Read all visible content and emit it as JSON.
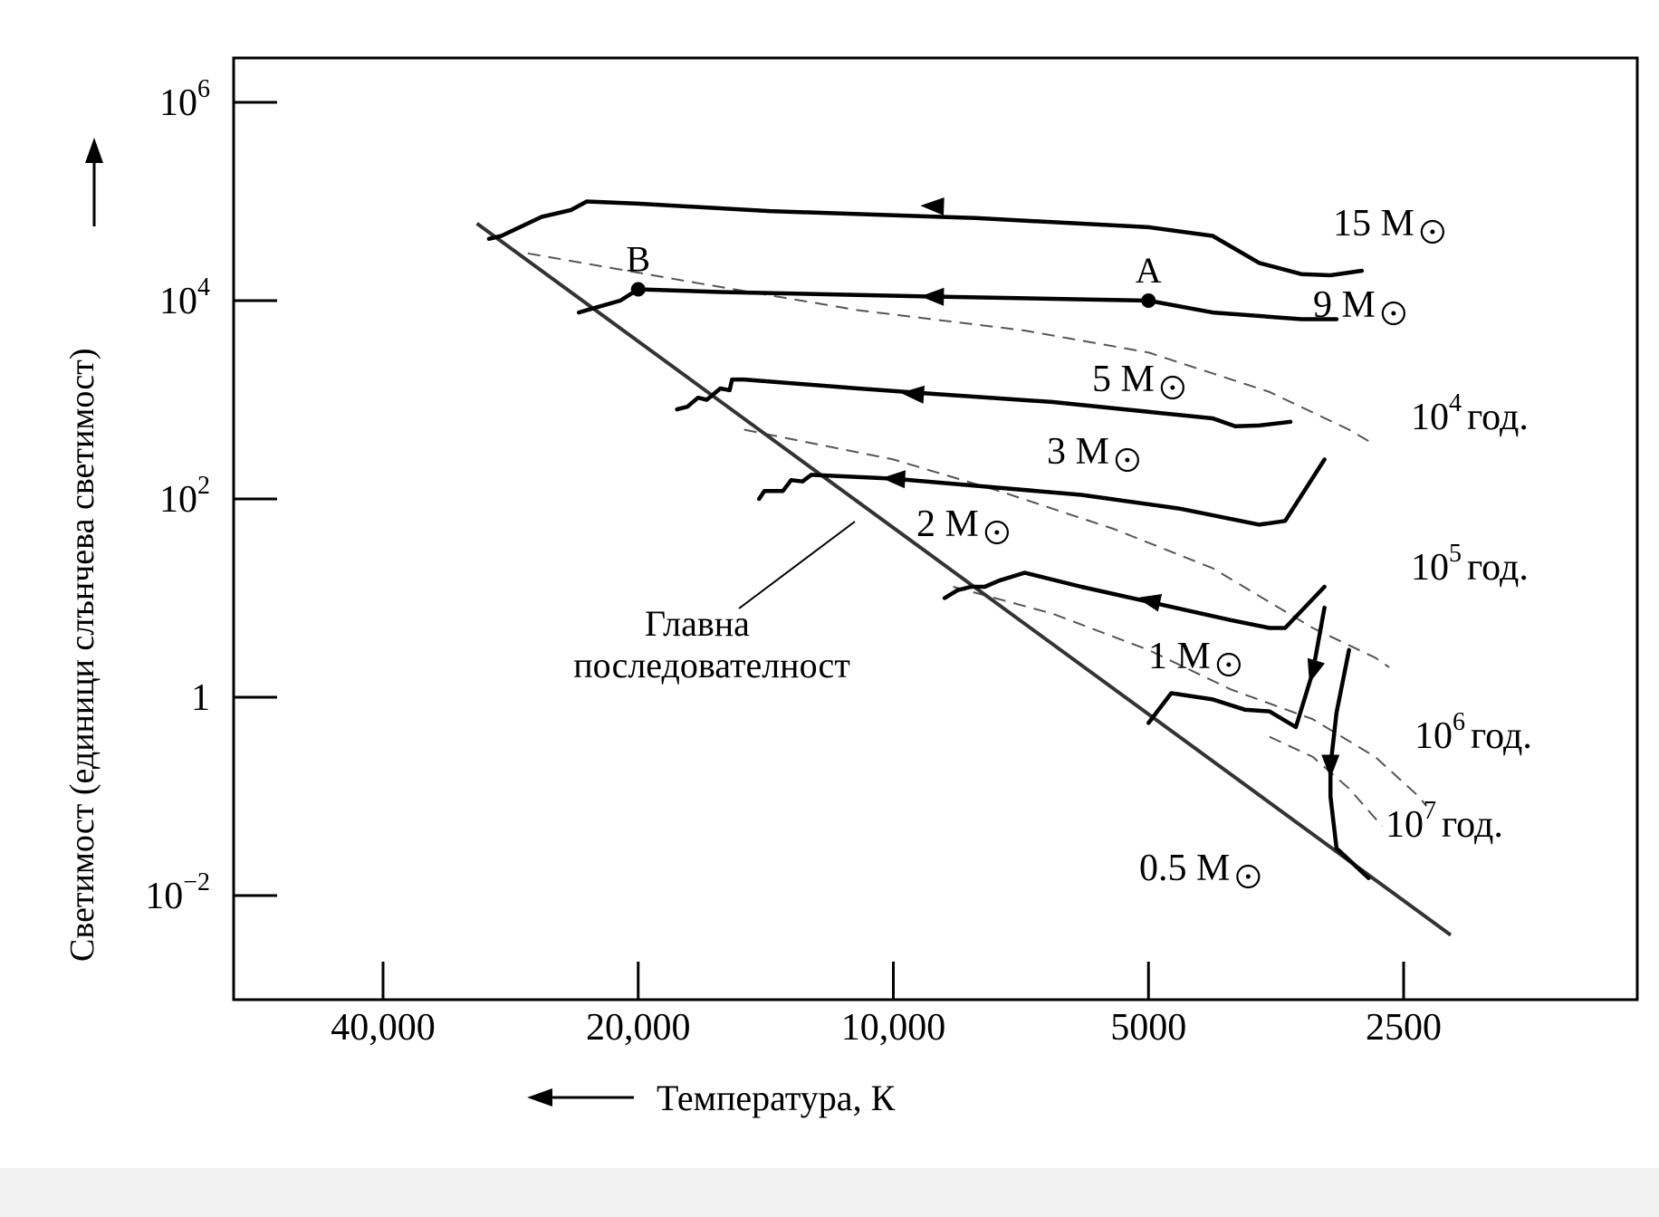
{
  "chart_data": {
    "type": "line",
    "xlabel": "Температура, К",
    "ylabel": "Светимост (единици слънчева светимост)",
    "x_scale": "log, reversed",
    "y_scale": "log",
    "xlim": [
      60000,
      1600
    ],
    "ylim": [
      0.001,
      3000000
    ],
    "x_ticks": [
      {
        "value": 40000,
        "label": "40,000"
      },
      {
        "value": 20000,
        "label": "20,000"
      },
      {
        "value": 10000,
        "label": "10,000"
      },
      {
        "value": 5000,
        "label": "5000"
      },
      {
        "value": 2500,
        "label": "2500"
      }
    ],
    "y_ticks": [
      {
        "value": 1000000,
        "base": "10",
        "exp": "6"
      },
      {
        "value": 10000,
        "base": "10",
        "exp": "4"
      },
      {
        "value": 100,
        "base": "10",
        "exp": "2"
      },
      {
        "value": 1,
        "base": "1",
        "exp": ""
      },
      {
        "value": 0.01,
        "base": "10",
        "exp": "−2"
      }
    ],
    "grid": false,
    "main_sequence": {
      "label_line1": "Главна",
      "label_line2": "последователност",
      "points": [
        [
          31000,
          60000
        ],
        [
          2200,
          0.004
        ]
      ]
    },
    "tracks": [
      {
        "mass": "15 M",
        "points": [
          [
            2800,
            20000
          ],
          [
            3050,
            18000
          ],
          [
            3300,
            18500
          ],
          [
            3700,
            24000
          ],
          [
            4200,
            45000
          ],
          [
            5000,
            55000
          ],
          [
            8000,
            68000
          ],
          [
            14000,
            80000
          ],
          [
            20000,
            95000
          ],
          [
            23000,
            100000
          ],
          [
            24000,
            82000
          ],
          [
            26000,
            70000
          ],
          [
            29000,
            45000
          ],
          [
            30000,
            42000
          ]
        ],
        "arrows": [
          [
            9000,
            90000
          ]
        ]
      },
      {
        "mass": "9 M",
        "points": [
          [
            3000,
            6500
          ],
          [
            3300,
            6500
          ],
          [
            4200,
            7600
          ],
          [
            5000,
            10000
          ],
          [
            9000,
            11000
          ],
          [
            16000,
            12200
          ],
          [
            20000,
            13000
          ],
          [
            21000,
            10000
          ],
          [
            23000,
            8000
          ],
          [
            23500,
            7600
          ]
        ],
        "arrows": [
          [
            9000,
            11000
          ]
        ],
        "markers": [
          {
            "label": "A",
            "point": [
              5000,
              10000
            ]
          },
          {
            "label": "B",
            "point": [
              20000,
              13000
            ]
          }
        ]
      },
      {
        "mass": "5 M",
        "points": [
          [
            3400,
            600
          ],
          [
            3700,
            550
          ],
          [
            3950,
            540
          ],
          [
            4200,
            650
          ],
          [
            6500,
            950
          ],
          [
            9000,
            1150
          ],
          [
            11000,
            1300
          ],
          [
            15000,
            1600
          ],
          [
            15500,
            1600
          ],
          [
            15600,
            1250
          ],
          [
            16000,
            1300
          ],
          [
            16600,
            1000
          ],
          [
            17000,
            1050
          ],
          [
            17500,
            850
          ],
          [
            18000,
            800
          ]
        ],
        "arrows": [
          [
            9500,
            1150
          ]
        ]
      },
      {
        "mass": "3 M",
        "points": [
          [
            3100,
            250
          ],
          [
            3450,
            60
          ],
          [
            3700,
            55
          ],
          [
            4600,
            80
          ],
          [
            6000,
            110
          ],
          [
            10000,
            160
          ],
          [
            12500,
            175
          ],
          [
            12800,
            150
          ],
          [
            13200,
            155
          ],
          [
            13500,
            120
          ],
          [
            14200,
            120
          ],
          [
            14400,
            100
          ]
        ],
        "arrows": [
          [
            10000,
            160
          ]
        ]
      },
      {
        "mass": "2 M",
        "points": [
          [
            3100,
            13
          ],
          [
            3450,
            5
          ],
          [
            3600,
            5
          ],
          [
            4000,
            6
          ],
          [
            6000,
            13
          ],
          [
            7000,
            18
          ],
          [
            7500,
            15
          ],
          [
            7800,
            13
          ],
          [
            8100,
            13
          ],
          [
            8400,
            12
          ],
          [
            8700,
            10
          ]
        ],
        "arrows": [
          [
            5000,
            9.5
          ]
        ]
      },
      {
        "mass": "1 M",
        "points": [
          [
            3100,
            8
          ],
          [
            3200,
            1.8
          ],
          [
            3350,
            0.5
          ],
          [
            3600,
            0.72
          ],
          [
            3850,
            0.75
          ],
          [
            4200,
            0.95
          ],
          [
            4700,
            1.1
          ],
          [
            5000,
            0.55
          ]
        ],
        "arrows": [
          [
            3200,
            1.8
          ]
        ]
      },
      {
        "mass": "0.5 M",
        "points": [
          [
            2900,
            3
          ],
          [
            3000,
            0.7
          ],
          [
            3050,
            0.2
          ],
          [
            3050,
            0.1
          ],
          [
            3000,
            0.03
          ],
          [
            2750,
            0.015
          ]
        ],
        "arrows": [
          [
            3050,
            0.2
          ]
        ]
      }
    ],
    "isochrones": [
      {
        "label": "10",
        "exp": "4",
        "unit": "год.",
        "points": [
          [
            27000,
            30000
          ],
          [
            17000,
            15000
          ],
          [
            11000,
            8000
          ],
          [
            7000,
            5000
          ],
          [
            5000,
            3000
          ],
          [
            3600,
            1200
          ],
          [
            2900,
            500
          ],
          [
            2700,
            350
          ]
        ]
      },
      {
        "label": "10",
        "exp": "5",
        "unit": "год.",
        "points": [
          [
            15000,
            500
          ],
          [
            10000,
            250
          ],
          [
            7500,
            120
          ],
          [
            5500,
            50
          ],
          [
            4200,
            20
          ],
          [
            3200,
            5
          ],
          [
            2700,
            2.5
          ],
          [
            2600,
            2
          ]
        ]
      },
      {
        "label": "10",
        "exp": "6",
        "unit": "год.",
        "points": [
          [
            8500,
            13
          ],
          [
            6500,
            7
          ],
          [
            5000,
            3
          ],
          [
            4000,
            1.2
          ],
          [
            3200,
            0.6
          ],
          [
            2700,
            0.25
          ],
          [
            2400,
            0.1
          ],
          [
            2350,
            0.08
          ]
        ]
      },
      {
        "label": "10",
        "exp": "7",
        "unit": "год.",
        "points": [
          [
            3600,
            0.4
          ],
          [
            3200,
            0.25
          ],
          [
            2900,
            0.12
          ],
          [
            2700,
            0.06
          ],
          [
            2650,
            0.05
          ]
        ]
      }
    ]
  }
}
